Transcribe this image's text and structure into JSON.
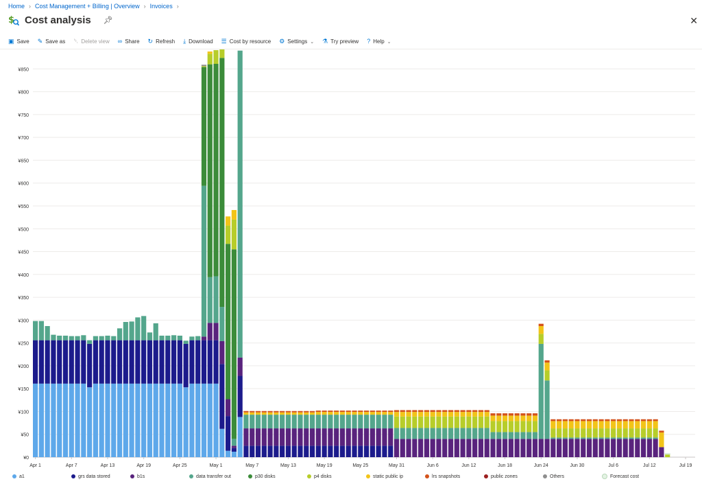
{
  "breadcrumb": {
    "items": [
      "Home",
      "Cost Management + Billing | Overview",
      "Invoices"
    ]
  },
  "header": {
    "title": "Cost analysis"
  },
  "toolbar": {
    "save": "Save",
    "save_as": "Save as",
    "delete_view": "Delete view",
    "share": "Share",
    "refresh": "Refresh",
    "download": "Download",
    "cost_by_resource": "Cost by resource",
    "settings": "Settings",
    "try_preview": "Try preview",
    "help": "Help"
  },
  "colors": {
    "a1": "#5ea8ea",
    "grs data stored": "#1c1b8c",
    "b1s": "#59237d",
    "data transfer out": "#54a68c",
    "p30 disks": "#3c8c3a",
    "p4 disks": "#b7cd2a",
    "static public ip": "#f2c419",
    "lrs snapshots": "#d4531b",
    "public zones": "#9c2020",
    "Others": "#8e8e8e",
    "Forecast cost": "#e4f3e4"
  },
  "chart_data": {
    "type": "bar",
    "stacked": true,
    "yticks": [
      "¥0",
      "¥50",
      "¥100",
      "¥150",
      "¥200",
      "¥250",
      "¥300",
      "¥350",
      "¥400",
      "¥450",
      "¥500",
      "¥550",
      "¥600",
      "¥650",
      "¥700",
      "¥750",
      "¥800",
      "¥850"
    ],
    "ylim": [
      0,
      890
    ],
    "grid": true,
    "legend_position": "bottom",
    "start_date": "Apr 1",
    "xtick_labels": [
      "Apr 1",
      "Apr 7",
      "Apr 13",
      "Apr 19",
      "Apr 25",
      "May 1",
      "May 7",
      "May 13",
      "May 19",
      "May 25",
      "May 31",
      "Jun 6",
      "Jun 12",
      "Jun 18",
      "Jun 24",
      "Jun 30",
      "Jul 6",
      "Jul 12",
      "Jul 19"
    ],
    "series_order": [
      "a1",
      "grs data stored",
      "b1s",
      "data transfer out",
      "p30 disks",
      "p4 disks",
      "static public ip",
      "lrs snapshots",
      "public zones",
      "Others",
      "Forecast cost"
    ],
    "series_names": [
      "a1",
      "grs data stored",
      "b1s",
      "data transfer out",
      "p30 disks",
      "p4 disks",
      "static public ip",
      "lrs snapshots",
      "public zones",
      "Others",
      "Forecast cost"
    ],
    "daily": [
      {
        "a1": 161,
        "grs data stored": 95,
        "data transfer out": 42
      },
      {
        "a1": 161,
        "grs data stored": 95,
        "data transfer out": 42
      },
      {
        "a1": 161,
        "grs data stored": 95,
        "data transfer out": 31
      },
      {
        "a1": 161,
        "grs data stored": 95,
        "data transfer out": 12
      },
      {
        "a1": 161,
        "grs data stored": 95,
        "data transfer out": 10
      },
      {
        "a1": 161,
        "grs data stored": 95,
        "data transfer out": 10
      },
      {
        "a1": 161,
        "grs data stored": 95,
        "data transfer out": 9
      },
      {
        "a1": 161,
        "grs data stored": 95,
        "data transfer out": 9
      },
      {
        "a1": 161,
        "grs data stored": 95,
        "data transfer out": 11
      },
      {
        "a1": 153,
        "grs data stored": 95,
        "data transfer out": 8
      },
      {
        "a1": 161,
        "grs data stored": 95,
        "data transfer out": 9
      },
      {
        "a1": 161,
        "grs data stored": 95,
        "data transfer out": 9
      },
      {
        "a1": 161,
        "grs data stored": 95,
        "data transfer out": 10
      },
      {
        "a1": 161,
        "grs data stored": 95,
        "data transfer out": 9
      },
      {
        "a1": 161,
        "grs data stored": 95,
        "data transfer out": 26
      },
      {
        "a1": 161,
        "grs data stored": 95,
        "data transfer out": 40
      },
      {
        "a1": 161,
        "grs data stored": 95,
        "data transfer out": 41
      },
      {
        "a1": 161,
        "grs data stored": 95,
        "data transfer out": 50
      },
      {
        "a1": 161,
        "grs data stored": 95,
        "data transfer out": 53
      },
      {
        "a1": 161,
        "grs data stored": 95,
        "data transfer out": 17
      },
      {
        "a1": 161,
        "grs data stored": 95,
        "data transfer out": 37
      },
      {
        "a1": 161,
        "grs data stored": 95,
        "data transfer out": 10
      },
      {
        "a1": 161,
        "grs data stored": 95,
        "data transfer out": 10
      },
      {
        "a1": 161,
        "grs data stored": 95,
        "data transfer out": 11
      },
      {
        "a1": 161,
        "grs data stored": 95,
        "data transfer out": 10
      },
      {
        "a1": 153,
        "grs data stored": 95,
        "data transfer out": 7
      },
      {
        "a1": 161,
        "grs data stored": 95,
        "data transfer out": 8
      },
      {
        "a1": 161,
        "grs data stored": 95,
        "data transfer out": 9
      },
      {
        "a1": 161,
        "grs data stored": 95,
        "b1s": 8,
        "data transfer out": 330,
        "p30 disks": 260,
        "p4 disks": 2,
        "Others": 3
      },
      {
        "a1": 161,
        "grs data stored": 95,
        "b1s": 38,
        "data transfer out": 100,
        "p30 disks": 466,
        "p4 disks": 23,
        "static public ip": 5
      },
      {
        "a1": 161,
        "grs data stored": 95,
        "b1s": 38,
        "data transfer out": 102,
        "p30 disks": 465,
        "p4 disks": 30
      },
      {
        "a1": 62,
        "grs data stored": 142,
        "b1s": 50,
        "data transfer out": 75,
        "p30 disks": 545,
        "p4 disks": 26
      },
      {
        "a1": 14,
        "grs data stored": 76,
        "b1s": 37,
        "p30 disks": 340,
        "p4 disks": 40,
        "static public ip": 20
      },
      {
        "a1": 12,
        "grs data stored": 8,
        "b1s": 5,
        "data transfer out": 15,
        "p30 disks": 415,
        "p4 disks": 65,
        "static public ip": 21
      },
      {
        "a1": 88,
        "grs data stored": 90,
        "b1s": 40,
        "data transfer out": 672
      }
    ],
    "segments": [
      {
        "from": 35,
        "to": 46,
        "values": {
          "grs data stored": 25,
          "b1s": 38,
          "data transfer out": 30,
          "static public ip": 5,
          "lrs snapshots": 3
        }
      },
      {
        "from": 47,
        "to": 59,
        "values": {
          "grs data stored": 25,
          "b1s": 38,
          "data transfer out": 30,
          "static public ip": 6,
          "lrs snapshots": 3
        }
      },
      {
        "from": 60,
        "to": 75,
        "values": {
          "b1s": 40,
          "data transfer out": 24,
          "p4 disks": 25,
          "static public ip": 10,
          "lrs snapshots": 4
        }
      },
      {
        "from": 76,
        "to": 83,
        "values": {
          "b1s": 40,
          "data transfer out": 15,
          "p4 disks": 24,
          "static public ip": 12,
          "lrs snapshots": 5
        }
      },
      {
        "from": 84,
        "to": 84,
        "values": {
          "b1s": 40,
          "data transfer out": 208,
          "p4 disks": 22,
          "static public ip": 17,
          "lrs snapshots": 5
        }
      },
      {
        "from": 85,
        "to": 85,
        "values": {
          "b1s": 40,
          "data transfer out": 128,
          "p4 disks": 22,
          "static public ip": 17,
          "lrs snapshots": 5
        }
      },
      {
        "from": 86,
        "to": 103,
        "values": {
          "b1s": 40,
          "data transfer out": 3,
          "p4 disks": 20,
          "static public ip": 16,
          "lrs snapshots": 4
        }
      },
      {
        "from": 104,
        "to": 104,
        "values": {
          "b1s": 22,
          "static public ip": 32,
          "lrs snapshots": 4
        }
      },
      {
        "from": 105,
        "to": 105,
        "values": {
          "Forecast cost": 2,
          "p4 disks": 6
        }
      }
    ]
  }
}
